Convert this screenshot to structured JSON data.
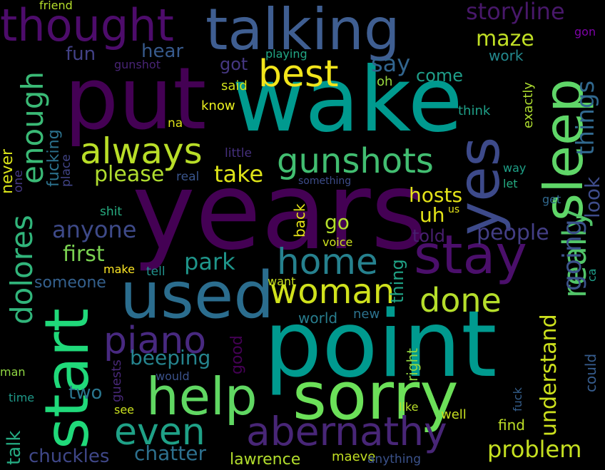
{
  "words": [
    {
      "text": "years",
      "color": "#440154"
    },
    {
      "text": "put",
      "color": "#440154"
    },
    {
      "text": "wake",
      "color": "#009a8f"
    },
    {
      "text": "point",
      "color": "#009a8f"
    },
    {
      "text": "sorry",
      "color": "#6ce059"
    },
    {
      "text": "start",
      "color": "#20d97a"
    },
    {
      "text": "yes",
      "color": "#3d4a8a"
    },
    {
      "text": "talking",
      "color": "#3f5e91"
    },
    {
      "text": "used",
      "color": "#2b6d8e"
    },
    {
      "text": "help",
      "color": "#60d762"
    },
    {
      "text": "stay",
      "color": "#4b0f6b"
    },
    {
      "text": "sleep",
      "color": "#5fd668"
    },
    {
      "text": "thought",
      "color": "#4d0c6b"
    },
    {
      "text": "abernathy",
      "color": "#482677"
    },
    {
      "text": "piano",
      "color": "#482980"
    },
    {
      "text": "best",
      "color": "#f2e51b"
    },
    {
      "text": "always",
      "color": "#b9de28"
    },
    {
      "text": "gunshots",
      "color": "#42be71"
    },
    {
      "text": "woman",
      "color": "#d0e11c"
    },
    {
      "text": "done",
      "color": "#b5de2b"
    },
    {
      "text": "home",
      "color": "#26818e"
    },
    {
      "text": "even",
      "color": "#1fa187"
    },
    {
      "text": "really",
      "color": "#52c569"
    },
    {
      "text": "dolores",
      "color": "#31b57b"
    },
    {
      "text": "enough",
      "color": "#3aba76"
    },
    {
      "text": "going",
      "color": "#3b528b"
    },
    {
      "text": "things",
      "color": "#31688e"
    },
    {
      "text": "look",
      "color": "#3e4c8a"
    },
    {
      "text": "storyline",
      "color": "#48186a"
    },
    {
      "text": "problem",
      "color": "#c5e021"
    },
    {
      "text": "understand",
      "color": "#cde11d"
    },
    {
      "text": "maze",
      "color": "#c0df25"
    },
    {
      "text": "take",
      "color": "#dde318"
    },
    {
      "text": "please",
      "color": "#b0dd2f"
    },
    {
      "text": "park",
      "color": "#1f968b"
    },
    {
      "text": "anyone",
      "color": "#3e4a89"
    },
    {
      "text": "people",
      "color": "#433e85"
    },
    {
      "text": "first",
      "color": "#7ad151"
    },
    {
      "text": "hosts",
      "color": "#e5e419"
    },
    {
      "text": "chatter",
      "color": "#2d708e"
    },
    {
      "text": "beeping",
      "color": "#25848e"
    },
    {
      "text": "talk",
      "color": "#25ab82"
    },
    {
      "text": "chuckles",
      "color": "#3f4788"
    },
    {
      "text": "two",
      "color": "#2a768e"
    },
    {
      "text": "say",
      "color": "#32658e"
    },
    {
      "text": "fun",
      "color": "#424186"
    },
    {
      "text": "hear",
      "color": "#375a8c"
    },
    {
      "text": "got",
      "color": "#453781"
    },
    {
      "text": "go",
      "color": "#b4de2c"
    },
    {
      "text": "uh",
      "color": "#e2e418"
    },
    {
      "text": "told",
      "color": "#481f70"
    },
    {
      "text": "come",
      "color": "#1f9e89"
    },
    {
      "text": "work",
      "color": "#23898e"
    },
    {
      "text": "lawrence",
      "color": "#b2dd2d"
    },
    {
      "text": "maeve",
      "color": "#c2df23"
    },
    {
      "text": "find",
      "color": "#bddf26"
    },
    {
      "text": "someone",
      "color": "#34608d"
    },
    {
      "text": "good",
      "color": "#440154"
    },
    {
      "text": "world",
      "color": "#287d8e"
    },
    {
      "text": "fucking",
      "color": "#2c728e"
    },
    {
      "text": "never",
      "color": "#d8e219"
    },
    {
      "text": "back",
      "color": "#e7e419"
    },
    {
      "text": "thing",
      "color": "#20a386"
    },
    {
      "text": "right",
      "color": "#93d741"
    },
    {
      "text": "could",
      "color": "#365c8d"
    },
    {
      "text": "exactly",
      "color": "#addc30"
    },
    {
      "text": "know",
      "color": "#ecf21f"
    },
    {
      "text": "said",
      "color": "#d2e21b"
    },
    {
      "text": "oh",
      "color": "#98d83e"
    },
    {
      "text": "think",
      "color": "#1fa088"
    },
    {
      "text": "na",
      "color": "#dfe318"
    },
    {
      "text": "little",
      "color": "#46307e"
    },
    {
      "text": "real",
      "color": "#39558c"
    },
    {
      "text": "one",
      "color": "#453882"
    },
    {
      "text": "place",
      "color": "#414487"
    },
    {
      "text": "shit",
      "color": "#27ad81"
    },
    {
      "text": "make",
      "color": "#fde725"
    },
    {
      "text": "tell",
      "color": "#21918c"
    },
    {
      "text": "voice",
      "color": "#cde11d"
    },
    {
      "text": "want",
      "color": "#c8e020"
    },
    {
      "text": "new",
      "color": "#2c728e"
    },
    {
      "text": "guests",
      "color": "#482878"
    },
    {
      "text": "would",
      "color": "#3b528b"
    },
    {
      "text": "man",
      "color": "#90d743"
    },
    {
      "text": "time",
      "color": "#1f9a8a"
    },
    {
      "text": "see",
      "color": "#cae11f"
    },
    {
      "text": "like",
      "color": "#b8de29"
    },
    {
      "text": "well",
      "color": "#c7e020"
    },
    {
      "text": "fuck",
      "color": "#355f8d"
    },
    {
      "text": "anything",
      "color": "#3b528b"
    },
    {
      "text": "way",
      "color": "#1fa188"
    },
    {
      "text": "let",
      "color": "#25ac82"
    },
    {
      "text": "get",
      "color": "#31688e"
    },
    {
      "text": "us",
      "color": "#e4e419"
    },
    {
      "text": "ca",
      "color": "#1f9e89"
    },
    {
      "text": "something",
      "color": "#3d4d8a"
    },
    {
      "text": "gunshot",
      "color": "#482475"
    },
    {
      "text": "playing",
      "color": "#22a785"
    },
    {
      "text": "friend",
      "color": "#b5de2b"
    },
    {
      "text": "gon",
      "color": "#7e03a8"
    }
  ]
}
